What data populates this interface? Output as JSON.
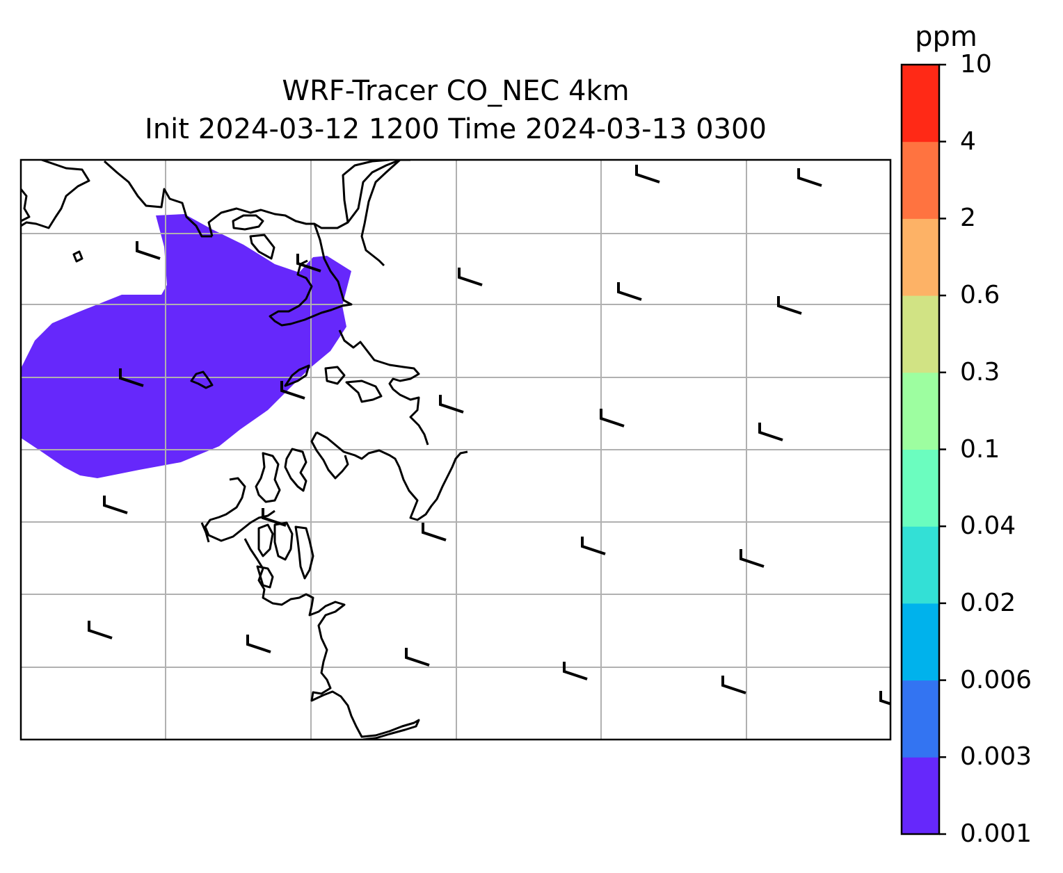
{
  "title": {
    "line1": "WRF-Tracer CO_NEC 4km",
    "line2": "Init 2024-03-12 1200 Time 2024-03-13 0300"
  },
  "colorbar": {
    "unit": "ppm",
    "levels": [
      "0.001",
      "0.003",
      "0.006",
      "0.02",
      "0.04",
      "0.1",
      "0.3",
      "0.6",
      "2",
      "4",
      "10"
    ],
    "colors": [
      "#6628fb",
      "#3374f2",
      "#00b2ec",
      "#33e0d6",
      "#6bfdbf",
      "#9dfea0",
      "#d1e384",
      "#fdb266",
      "#ff7340",
      "#ff2916"
    ]
  },
  "map": {
    "plume_color": "#6628fb",
    "plume_level": "0.001-0.003",
    "coastline_color": "#000000",
    "gridline_color": "#b0b0b0",
    "wind_barbs_shown": true
  }
}
